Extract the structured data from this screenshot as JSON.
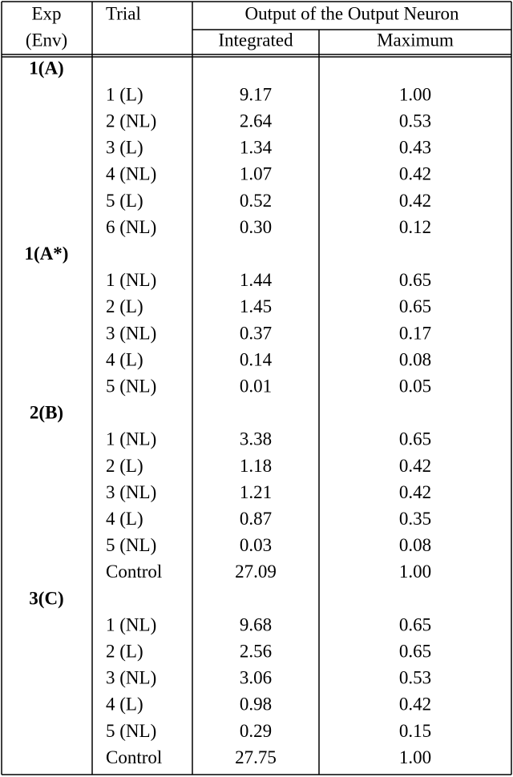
{
  "header": {
    "exp": "Exp",
    "env": "(Env)",
    "trial": "Trial",
    "output": "Output of the Output Neuron",
    "integrated": "Integrated",
    "maximum": "Maximum"
  },
  "groups": [
    {
      "label": "1(A)",
      "rows": [
        [
          "1 (L)",
          "9.17",
          "1.00"
        ],
        [
          "2 (NL)",
          "2.64",
          "0.53"
        ],
        [
          "3 (L)",
          "1.34",
          "0.43"
        ],
        [
          "4 (NL)",
          "1.07",
          "0.42"
        ],
        [
          "5 (L)",
          "0.52",
          "0.42"
        ],
        [
          "6 (NL)",
          "0.30",
          "0.12"
        ]
      ]
    },
    {
      "label": "1(A*)",
      "rows": [
        [
          "1 (NL)",
          "1.44",
          "0.65"
        ],
        [
          "2 (L)",
          "1.45",
          "0.65"
        ],
        [
          "3 (NL)",
          "0.37",
          "0.17"
        ],
        [
          "4 (L)",
          "0.14",
          "0.08"
        ],
        [
          "5 (NL)",
          "0.01",
          "0.05"
        ]
      ]
    },
    {
      "label": "2(B)",
      "rows": [
        [
          "1 (NL)",
          "3.38",
          "0.65"
        ],
        [
          "2 (L)",
          "1.18",
          "0.42"
        ],
        [
          "3 (NL)",
          "1.21",
          "0.42"
        ],
        [
          "4 (L)",
          "0.87",
          "0.35"
        ],
        [
          "5 (NL)",
          "0.03",
          "0.08"
        ],
        [
          "Control",
          "27.09",
          "1.00"
        ]
      ]
    },
    {
      "label": "3(C)",
      "rows": [
        [
          "1 (NL)",
          "9.68",
          "0.65"
        ],
        [
          "2 (L)",
          "2.56",
          "0.65"
        ],
        [
          "3 (NL)",
          "3.06",
          "0.53"
        ],
        [
          "4 (L)",
          "0.98",
          "0.42"
        ],
        [
          "5 (NL)",
          "0.29",
          "0.15"
        ],
        [
          "Control",
          "27.75",
          "1.00"
        ]
      ]
    }
  ]
}
